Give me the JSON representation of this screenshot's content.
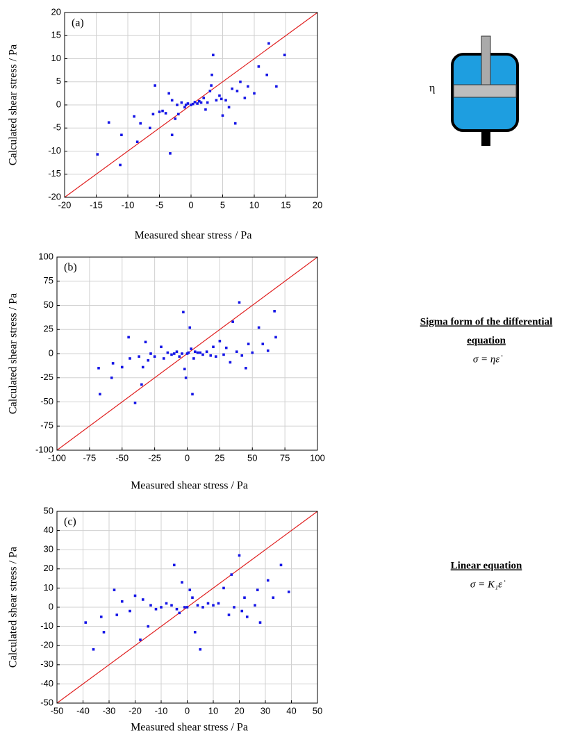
{
  "chart_data": [
    {
      "type": "scatter",
      "panel_label": "(a)",
      "x_label": "Measured shear stress / Pa",
      "y_label": "Calculated shear stress / Pa",
      "color": "#1515e6",
      "grid": true,
      "xlim": [
        -20,
        20
      ],
      "ylim": [
        -20,
        20
      ],
      "xticks": [
        -20,
        -15,
        -10,
        -5,
        0,
        5,
        10,
        15,
        20
      ],
      "yticks": [
        -20,
        -15,
        -10,
        -5,
        0,
        5,
        10,
        15,
        20
      ],
      "x": [
        -14.8,
        -13,
        -11.2,
        -11,
        -9,
        -8.5,
        -8,
        -6.5,
        -6,
        -5.7,
        -5,
        -4.5,
        -4,
        -3.5,
        -3.3,
        -3,
        -3,
        -2.5,
        -2.2,
        -2,
        -1.5,
        -1,
        -0.8,
        -0.5,
        0,
        0.3,
        0.6,
        1,
        1.3,
        1.6,
        2,
        2.3,
        2.6,
        3,
        3.2,
        3.3,
        3.5,
        4,
        4.5,
        4.8,
        5,
        5.5,
        6,
        6.5,
        7,
        7.3,
        7.8,
        8.5,
        9,
        10,
        10.7,
        12,
        12.3,
        13.5,
        14.8
      ],
      "y": [
        -10.7,
        -3.8,
        -13,
        -6.5,
        -2.5,
        -8,
        -4,
        -5,
        -2,
        4.2,
        -1.5,
        -1.3,
        -1.8,
        2.5,
        -10.5,
        -6.5,
        1,
        -3,
        0,
        -2,
        0.5,
        -0.5,
        0,
        0.3,
        0,
        0.2,
        0.6,
        0.3,
        0.8,
        0.5,
        1.5,
        -1,
        0.5,
        3,
        4.2,
        6.5,
        10.8,
        1,
        2,
        1.3,
        -2.3,
        1,
        -0.5,
        3.5,
        -4,
        3,
        5,
        1.5,
        4,
        2.5,
        8.3,
        6.5,
        13.3,
        4,
        10.8
      ]
    },
    {
      "type": "scatter",
      "panel_label": "(b)",
      "x_label": "Measured shear stress / Pa",
      "y_label": "Calculated shear stress / Pa",
      "color": "#1515e6",
      "grid": true,
      "xlim": [
        -100,
        100
      ],
      "ylim": [
        -100,
        100
      ],
      "xticks": [
        -100,
        -75,
        -50,
        -25,
        0,
        25,
        50,
        75,
        100
      ],
      "yticks": [
        -100,
        -75,
        -50,
        -25,
        0,
        25,
        50,
        75,
        100
      ],
      "x": [
        -68,
        -67,
        -58,
        -57,
        -50,
        -45,
        -44,
        -40,
        -37,
        -35,
        -34,
        -32,
        -30,
        -28,
        -25,
        -20,
        -18,
        -15,
        -12,
        -10,
        -8,
        -6,
        -4,
        -3,
        -2,
        -1,
        0,
        1,
        2,
        3,
        4,
        5,
        6,
        8,
        10,
        12,
        15,
        18,
        20,
        22,
        25,
        28,
        30,
        33,
        35,
        38,
        40,
        42,
        45,
        47,
        50,
        55,
        58,
        62,
        67,
        68
      ],
      "y": [
        -15,
        -42,
        -25,
        -10,
        -14,
        17,
        -5,
        -51,
        -3,
        -32,
        -14,
        12,
        -7,
        0,
        -3,
        7,
        -5,
        1,
        -1,
        0,
        2,
        -3,
        0,
        43,
        -16,
        -25,
        0,
        1,
        27,
        5,
        -42,
        -5,
        2,
        1,
        1,
        -1,
        2,
        -2,
        7,
        -3,
        13,
        -1,
        6,
        -9,
        33,
        2,
        53,
        -2,
        -15,
        10,
        1,
        27,
        10,
        3,
        44,
        17
      ]
    },
    {
      "type": "scatter",
      "panel_label": "(c)",
      "x_label": "Measured shear stress / Pa",
      "y_label": "Calculated shear stress / Pa",
      "color": "#1515e6",
      "grid": true,
      "xlim": [
        -50,
        50
      ],
      "ylim": [
        -50,
        50
      ],
      "xticks": [
        -50,
        -40,
        -30,
        -20,
        -10,
        0,
        10,
        20,
        30,
        40,
        50
      ],
      "yticks": [
        -50,
        -40,
        -30,
        -20,
        -10,
        0,
        10,
        20,
        30,
        40,
        50
      ],
      "x": [
        -39,
        -36,
        -33,
        -32,
        -28,
        -27,
        -25,
        -22,
        -20,
        -18,
        -17,
        -15,
        -14,
        -12,
        -10,
        -8,
        -6,
        -5,
        -4,
        -3,
        -2,
        -1,
        0,
        1,
        2,
        3,
        4,
        5,
        6,
        8,
        10,
        12,
        14,
        16,
        17,
        18,
        20,
        21,
        22,
        23,
        26,
        27,
        28,
        31,
        33,
        36,
        39
      ],
      "y": [
        -8,
        -22,
        -5,
        -13,
        9,
        -4,
        3,
        -2,
        6,
        -17,
        4,
        -10,
        1,
        -1,
        0,
        2,
        1,
        22,
        -1,
        -3,
        13,
        0,
        0,
        9,
        5,
        -13,
        1,
        -22,
        0,
        2,
        1,
        2,
        10,
        -4,
        17,
        0,
        27,
        -2,
        5,
        -5,
        1,
        9,
        -8,
        14,
        5,
        22,
        8
      ]
    }
  ],
  "model": {
    "symbol": "η",
    "sigma_heading": [
      "Sigma form of the differential",
      "equation"
    ],
    "sigma_equation": "σ = ηε̇",
    "linear_heading": "Linear equation",
    "linear_equation": "σ = K₁ε̇"
  }
}
